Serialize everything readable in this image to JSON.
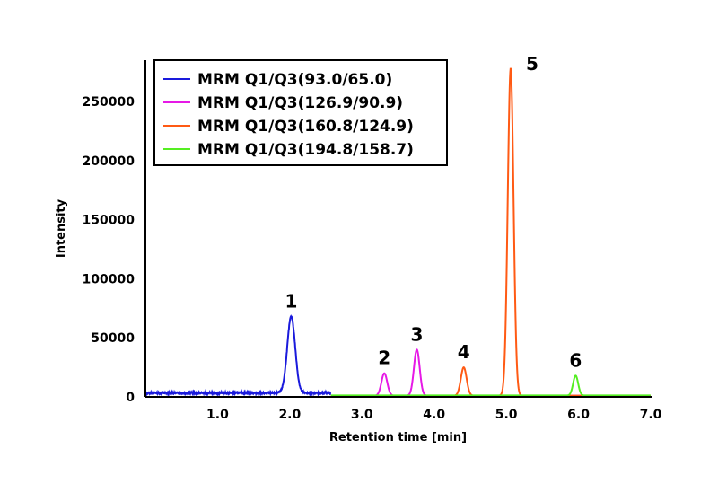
{
  "chart_data": {
    "type": "line",
    "title": "",
    "xlabel": "Retention time [min]",
    "ylabel": "Intensity",
    "xlim": [
      0,
      7.0
    ],
    "ylim": [
      0,
      285000
    ],
    "x_ticks": [
      1.0,
      2.0,
      3.0,
      4.0,
      5.0,
      6.0,
      7.0
    ],
    "x_tick_labels": [
      "1.0",
      "2.0",
      "3.0",
      "4.0",
      "5.0",
      "6.0",
      "7.0"
    ],
    "y_ticks": [
      0,
      50000,
      100000,
      150000,
      200000,
      250000
    ],
    "y_tick_labels": [
      "0",
      "50000",
      "100000",
      "150000",
      "200000",
      "250000"
    ],
    "grid": false,
    "legend_position": "top-left",
    "series": [
      {
        "name": "MRM Q1/Q3(93.0/65.0)",
        "color": "#1a1adc",
        "x_range": [
          0,
          2.57
        ],
        "baseline": 3300,
        "peaks": [
          {
            "label": "1",
            "x": 2.02,
            "y": 68000,
            "width": 0.055
          }
        ]
      },
      {
        "name": "MRM Q1/Q3(126.9/90.9)",
        "color": "#e619e6",
        "x_range": [
          2.57,
          7.0
        ],
        "baseline": 1000,
        "peaks": [
          {
            "label": "2",
            "x": 3.31,
            "y": 20000,
            "width": 0.04
          },
          {
            "label": "3",
            "x": 3.76,
            "y": 40000,
            "width": 0.04
          }
        ]
      },
      {
        "name": "MRM Q1/Q3(160.8/124.9)",
        "color": "#ff5a14",
        "x_range": [
          2.57,
          7.0
        ],
        "baseline": 1000,
        "peaks": [
          {
            "label": "4",
            "x": 4.41,
            "y": 25000,
            "width": 0.04
          },
          {
            "label": "5",
            "x": 5.06,
            "y": 278000,
            "width": 0.04
          }
        ]
      },
      {
        "name": "MRM Q1/Q3(194.8/158.7)",
        "color": "#55ee22",
        "x_range": [
          2.57,
          7.0
        ],
        "baseline": 1200,
        "peaks": [
          {
            "label": "6",
            "x": 5.96,
            "y": 18000,
            "width": 0.035
          }
        ]
      }
    ],
    "annotations": [
      "1",
      "2",
      "3",
      "4",
      "5",
      "6"
    ]
  }
}
